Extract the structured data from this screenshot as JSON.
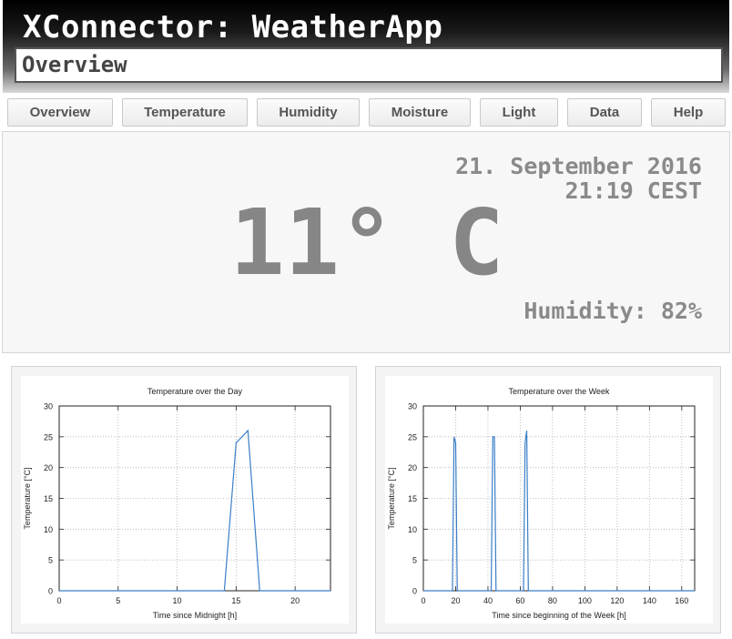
{
  "header": {
    "app_title": "XConnector: WeatherApp",
    "page_name": "Overview"
  },
  "nav": {
    "items": [
      {
        "label": "Overview"
      },
      {
        "label": "Temperature"
      },
      {
        "label": "Humidity"
      },
      {
        "label": "Moisture"
      },
      {
        "label": "Light"
      },
      {
        "label": "Data"
      },
      {
        "label": "Help"
      }
    ]
  },
  "overview": {
    "date": "21. September 2016",
    "time": "21:19 CEST",
    "temperature": "11° C",
    "humidity": "Humidity: 82%"
  },
  "colors": {
    "header_gradient_top": "#000000",
    "header_gradient_bottom": "#d8d8d8",
    "line_color": "#3a7fc7",
    "display_text": "#8a8a8a"
  },
  "chart_data": [
    {
      "type": "line",
      "title": "Temperature over the Day",
      "xlabel": "Time since Midnight [h]",
      "ylabel": "Temperature [°C]",
      "xlim": [
        0,
        23
      ],
      "ylim": [
        0,
        30
      ],
      "x_ticks": [
        0,
        5,
        10,
        15,
        20
      ],
      "y_ticks": [
        0,
        5,
        10,
        15,
        20,
        25,
        30
      ],
      "grid": true,
      "series": [
        {
          "x": [
            0,
            14,
            15,
            16,
            17,
            23
          ],
          "y": [
            0,
            0,
            24,
            26,
            0,
            0
          ]
        }
      ]
    },
    {
      "type": "line",
      "title": "Temperature over the Week",
      "xlabel": "Time since beginning of the Week [h]",
      "ylabel": "Temperature [°C]",
      "xlim": [
        0,
        168
      ],
      "ylim": [
        0,
        30
      ],
      "x_ticks": [
        0,
        20,
        40,
        60,
        80,
        100,
        120,
        140,
        160
      ],
      "y_ticks": [
        0,
        5,
        10,
        15,
        20,
        25,
        30
      ],
      "grid": true,
      "series": [
        {
          "x": [
            0,
            18,
            19,
            20,
            21,
            42,
            43,
            44,
            45,
            62,
            63,
            64,
            65,
            168
          ],
          "y": [
            0,
            0,
            25,
            24,
            0,
            0,
            25,
            25,
            0,
            0,
            24,
            26,
            0,
            0
          ]
        }
      ]
    }
  ]
}
